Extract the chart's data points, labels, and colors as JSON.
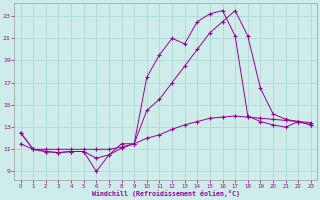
{
  "background_color": "#ceecea",
  "grid_color": "#aad4d0",
  "line_color": "#990099",
  "xlabel": "Windchill (Refroidissement éolien,°C)",
  "xlim": [
    -0.5,
    23.5
  ],
  "ylim": [
    8.2,
    24.2
  ],
  "yticks": [
    9,
    11,
    13,
    15,
    17,
    19,
    21,
    23
  ],
  "xticks": [
    0,
    1,
    2,
    3,
    4,
    5,
    6,
    7,
    8,
    9,
    10,
    11,
    12,
    13,
    14,
    15,
    16,
    17,
    18,
    19,
    20,
    21,
    22,
    23
  ],
  "s1_x": [
    0,
    1,
    2,
    3,
    4,
    5,
    6,
    7,
    8,
    9,
    10,
    11,
    12,
    13,
    14,
    15,
    16,
    17,
    18,
    19,
    20,
    21,
    22,
    23
  ],
  "s1_y": [
    12.5,
    11.0,
    10.8,
    10.7,
    10.8,
    10.8,
    9.0,
    10.5,
    11.1,
    11.5,
    17.5,
    19.5,
    21.0,
    20.5,
    22.5,
    23.2,
    23.5,
    21.2,
    14.0,
    13.5,
    13.2,
    13.0,
    13.5,
    13.2
  ],
  "s2_x": [
    0,
    1,
    2,
    3,
    4,
    5,
    6,
    7,
    8,
    9,
    10,
    11,
    12,
    13,
    14,
    15,
    16,
    17,
    18,
    19,
    20,
    21,
    22,
    23
  ],
  "s2_y": [
    12.5,
    11.0,
    10.8,
    10.7,
    10.8,
    10.8,
    10.2,
    10.5,
    11.5,
    11.5,
    14.5,
    15.5,
    17.0,
    18.5,
    20.0,
    21.5,
    22.5,
    23.5,
    21.2,
    16.5,
    14.2,
    13.7,
    13.5,
    13.2
  ],
  "s3_x": [
    0,
    1,
    2,
    3,
    4,
    5,
    6,
    7,
    8,
    9,
    10,
    11,
    12,
    13,
    14,
    15,
    16,
    17,
    18,
    19,
    20,
    21,
    22,
    23
  ],
  "s3_y": [
    11.5,
    11.0,
    11.0,
    11.0,
    11.0,
    11.0,
    11.0,
    11.0,
    11.2,
    11.5,
    12.0,
    12.3,
    12.8,
    13.2,
    13.5,
    13.8,
    13.9,
    14.0,
    13.9,
    13.8,
    13.7,
    13.6,
    13.5,
    13.4
  ]
}
